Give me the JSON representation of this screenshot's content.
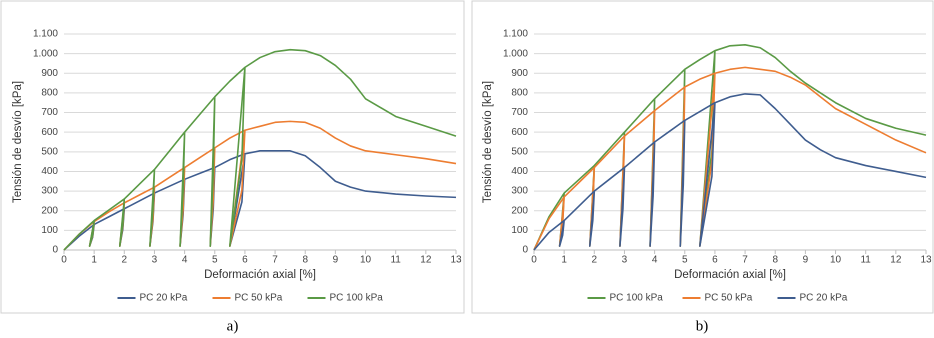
{
  "chart_data": [
    {
      "type": "line",
      "caption": "a)",
      "x_label": "Deformación axial [%]",
      "y_label": "Tensión de desvío [kPa]",
      "x": [
        0,
        0.5,
        1,
        0.85,
        0.95,
        1,
        1.5,
        2,
        1.85,
        1.95,
        2,
        2.5,
        3,
        2.85,
        2.95,
        3,
        3.5,
        4,
        3.85,
        3.95,
        4,
        4.5,
        5,
        4.85,
        4.95,
        5,
        5.5,
        6,
        5.5,
        5.9,
        6,
        6.5,
        7,
        7.5,
        8,
        8.5,
        9,
        9.5,
        10,
        11,
        12,
        13
      ],
      "series": [
        {
          "name": "PC 20 kPa",
          "color": "#3f5d8f",
          "values": [
            0,
            70,
            130,
            20,
            65,
            130,
            170,
            210,
            20,
            105,
            210,
            250,
            290,
            20,
            145,
            290,
            325,
            360,
            20,
            180,
            360,
            390,
            420,
            20,
            210,
            420,
            460,
            490,
            20,
            245,
            490,
            505,
            505,
            505,
            480,
            420,
            350,
            320,
            300,
            285,
            275,
            268
          ]
        },
        {
          "name": "PC 50 kPa",
          "color": "#ed7d31",
          "values": [
            0,
            80,
            145,
            20,
            72,
            145,
            195,
            240,
            20,
            120,
            240,
            280,
            320,
            20,
            160,
            320,
            370,
            420,
            20,
            210,
            420,
            470,
            520,
            20,
            260,
            520,
            570,
            610,
            20,
            305,
            610,
            630,
            650,
            655,
            650,
            620,
            570,
            530,
            505,
            485,
            465,
            440
          ]
        },
        {
          "name": "PC 100 kPa",
          "color": "#5a9a45",
          "values": [
            0,
            80,
            150,
            20,
            75,
            150,
            205,
            260,
            20,
            130,
            260,
            335,
            410,
            20,
            205,
            410,
            505,
            600,
            20,
            300,
            600,
            690,
            780,
            20,
            390,
            780,
            860,
            930,
            20,
            465,
            930,
            980,
            1010,
            1020,
            1015,
            990,
            940,
            870,
            770,
            680,
            630,
            580
          ]
        }
      ],
      "xlim": [
        0,
        13
      ],
      "xticks": [
        0,
        1,
        2,
        3,
        4,
        5,
        6,
        7,
        8,
        9,
        10,
        11,
        12,
        13
      ],
      "ylim": [
        0,
        1100
      ],
      "yticks": [
        0,
        100,
        200,
        300,
        400,
        500,
        600,
        700,
        800,
        900,
        {
          "value": 1000,
          "label": "1.000"
        },
        {
          "value": 1100,
          "label": "1.100"
        }
      ],
      "grid": true,
      "legend": "bottom"
    },
    {
      "type": "line",
      "caption": "b)",
      "x_label": "Deformación axial [%]",
      "y_label": "Tensión de desvío [kPa]",
      "x": [
        0,
        0.5,
        1,
        0.85,
        0.95,
        1,
        1.5,
        2,
        1.85,
        1.95,
        2,
        2.5,
        3,
        2.85,
        2.95,
        3,
        3.5,
        4,
        3.85,
        3.95,
        4,
        4.5,
        5,
        4.85,
        4.95,
        5,
        5.5,
        6,
        5.5,
        5.9,
        6,
        6.5,
        7,
        7.5,
        8,
        8.5,
        9,
        9.5,
        10,
        11,
        12,
        13
      ],
      "series": [
        {
          "name": "PC 100 kPa",
          "color": "#5a9a45",
          "values": [
            0,
            170,
            290,
            20,
            145,
            290,
            360,
            430,
            20,
            215,
            430,
            515,
            600,
            20,
            300,
            600,
            685,
            770,
            20,
            385,
            770,
            845,
            920,
            20,
            460,
            920,
            970,
            1015,
            20,
            505,
            1015,
            1040,
            1045,
            1030,
            980,
            910,
            850,
            800,
            750,
            670,
            620,
            585
          ]
        },
        {
          "name": "PC 50 kPa",
          "color": "#ed7d31",
          "values": [
            0,
            160,
            270,
            20,
            135,
            270,
            345,
            420,
            20,
            210,
            420,
            500,
            580,
            20,
            290,
            580,
            645,
            710,
            20,
            355,
            710,
            770,
            830,
            20,
            415,
            830,
            870,
            900,
            20,
            450,
            900,
            920,
            930,
            920,
            910,
            880,
            840,
            780,
            720,
            640,
            560,
            495
          ]
        },
        {
          "name": "PC 20 kPa",
          "color": "#3f5d8f",
          "values": [
            0,
            90,
            150,
            20,
            75,
            150,
            225,
            300,
            20,
            150,
            300,
            360,
            420,
            20,
            210,
            420,
            485,
            550,
            20,
            275,
            550,
            605,
            660,
            20,
            330,
            660,
            705,
            750,
            20,
            375,
            750,
            780,
            795,
            790,
            720,
            640,
            560,
            510,
            470,
            430,
            400,
            370
          ]
        }
      ],
      "xlim": [
        0,
        13
      ],
      "xticks": [
        0,
        1,
        2,
        3,
        4,
        5,
        6,
        7,
        8,
        9,
        10,
        11,
        12,
        13
      ],
      "ylim": [
        0,
        1100
      ],
      "yticks": [
        0,
        100,
        200,
        300,
        400,
        500,
        600,
        700,
        800,
        900,
        {
          "value": 1000,
          "label": "1.000"
        },
        {
          "value": 1100,
          "label": "1.100"
        }
      ],
      "grid": true,
      "legend": "bottom"
    }
  ]
}
